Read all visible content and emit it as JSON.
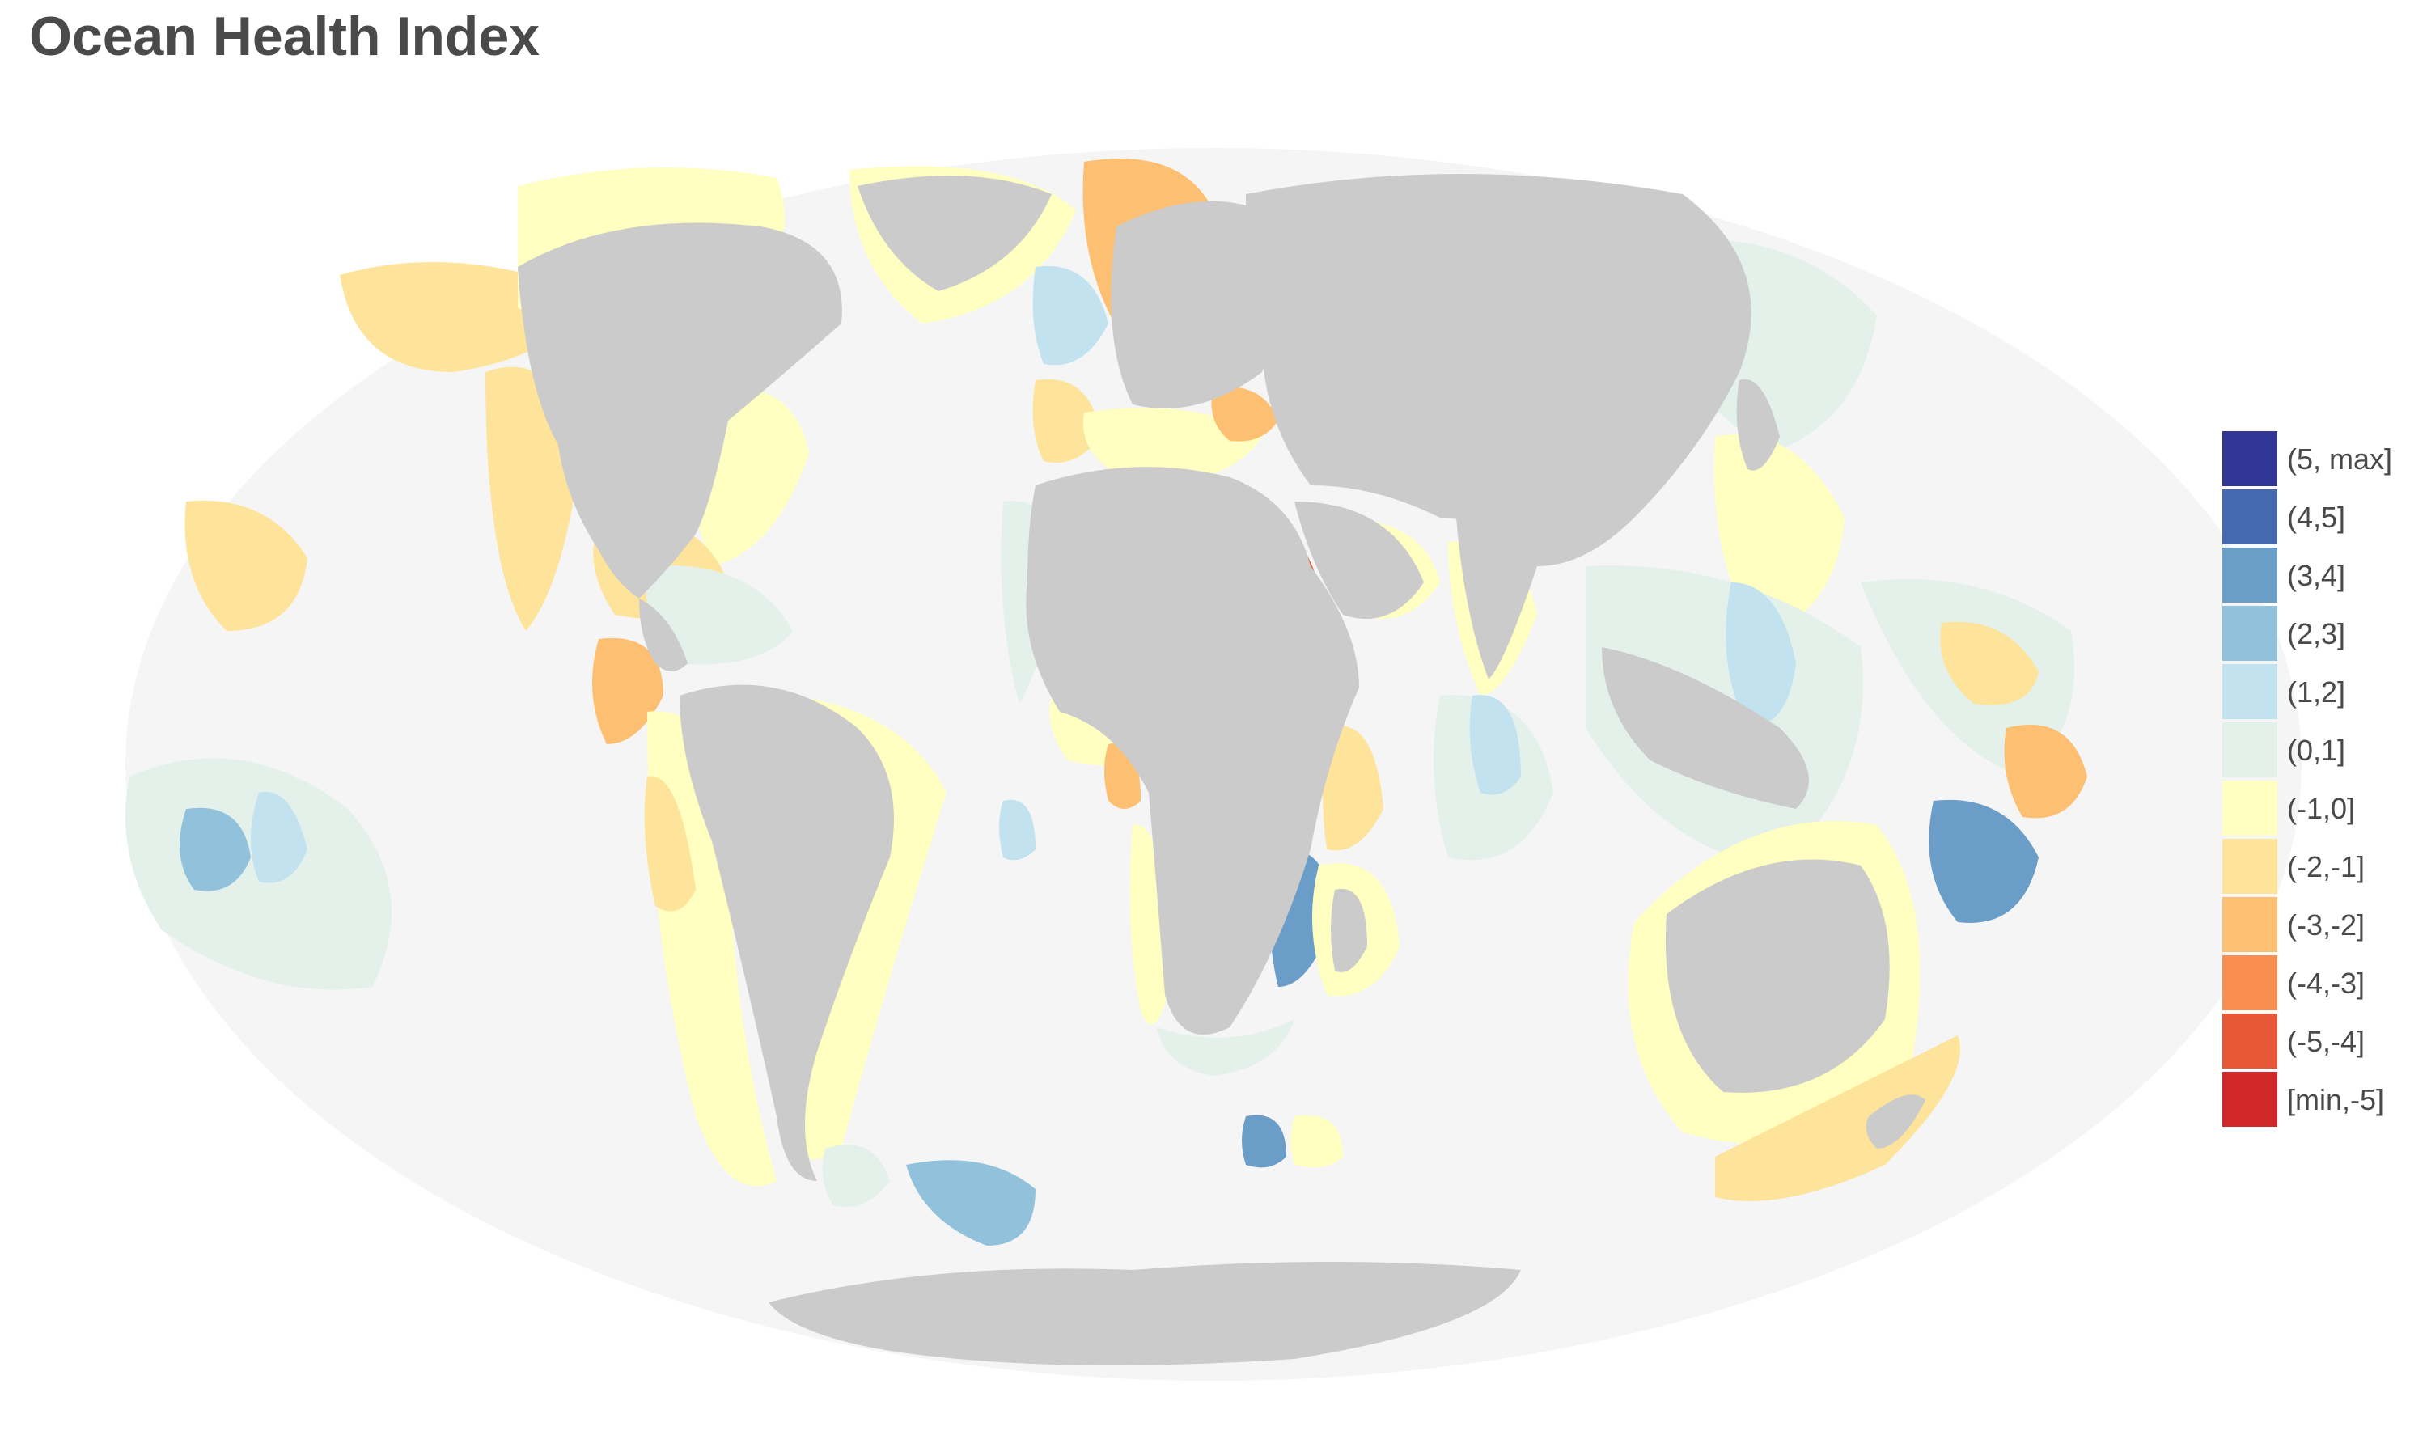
{
  "title": "Ocean Health Index",
  "colors": {
    "ocean": "#f5f5f5",
    "land": "#cbcbcb",
    "eez_outline": "#d9d9c8"
  },
  "legend": {
    "items": [
      {
        "label": "(5, max]",
        "color": "#313695"
      },
      {
        "label": "(4,5]",
        "color": "#4469b0"
      },
      {
        "label": "(3,4]",
        "color": "#6b9dc9"
      },
      {
        "label": "(2,3]",
        "color": "#92c1dc"
      },
      {
        "label": "(1,2]",
        "color": "#c1e2ee"
      },
      {
        "label": "(0,1]",
        "color": "#e3f1ea"
      },
      {
        "label": "(-1,0]",
        "color": "#feffc0"
      },
      {
        "label": "(-2,-1]",
        "color": "#fee39b"
      },
      {
        "label": "(-3,-2]",
        "color": "#fdbf71"
      },
      {
        "label": "(-4,-3]",
        "color": "#f88e52"
      },
      {
        "label": "(-5,-4]",
        "color": "#e75838"
      },
      {
        "label": "[min,-5]",
        "color": "#d0282a"
      }
    ]
  }
}
